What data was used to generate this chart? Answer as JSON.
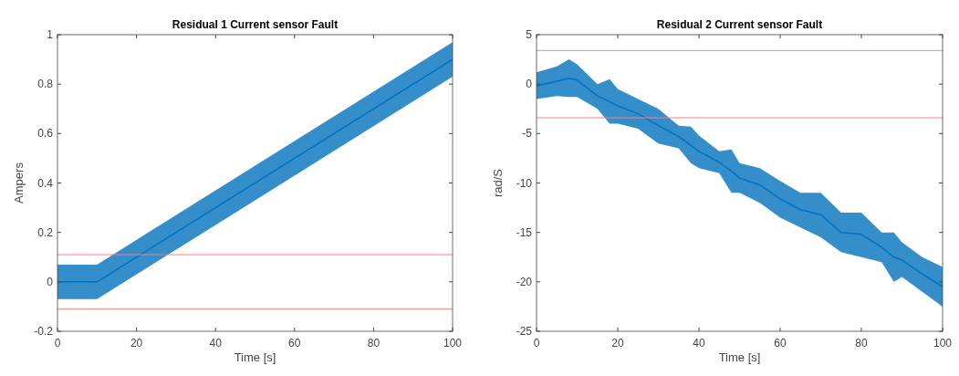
{
  "chart_data": [
    {
      "type": "line",
      "title": "Residual 1 Current sensor Fault",
      "xlabel": "Time [s]",
      "ylabel": "Ampers",
      "xlim": [
        0,
        100
      ],
      "xticks": [
        0,
        20,
        40,
        60,
        80,
        100
      ],
      "ylim": [
        -0.2,
        1
      ],
      "yticks": [
        -0.2,
        0,
        0.2,
        0.4,
        0.6,
        0.8,
        1
      ],
      "grid": false,
      "series": [
        {
          "color": "#0072bd",
          "x": [
            0,
            10,
            100
          ],
          "values": [
            0,
            0,
            0.9
          ],
          "lower": [
            -0.07,
            -0.07,
            0.83
          ],
          "upper": [
            0.07,
            0.07,
            0.97
          ]
        }
      ],
      "ref_lines": [
        {
          "axis": "y",
          "value": 0.11,
          "color": "#ff7f7f"
        },
        {
          "axis": "y",
          "value": -0.11,
          "color": "#ff7f7f"
        }
      ]
    },
    {
      "type": "line",
      "title": "Residual 2  Current sensor Fault",
      "xlabel": "Time [s]",
      "ylabel": "rad/S",
      "xlim": [
        0,
        100
      ],
      "xticks": [
        0,
        20,
        40,
        60,
        80,
        100
      ],
      "ylim": [
        -25,
        5
      ],
      "yticks": [
        -25,
        -20,
        -15,
        -10,
        -5,
        0,
        5
      ],
      "grid": false,
      "series": [
        {
          "color": "#0072bd",
          "x": [
            0,
            5,
            8,
            10,
            15,
            18,
            20,
            25,
            30,
            35,
            38,
            40,
            45,
            48,
            50,
            55,
            60,
            65,
            70,
            75,
            80,
            85,
            88,
            90,
            95,
            100
          ],
          "values": [
            -0.2,
            0.3,
            0.6,
            0.4,
            -1.2,
            -1.8,
            -2.2,
            -3,
            -4.2,
            -5.3,
            -6.2,
            -6.8,
            -7.9,
            -8.8,
            -9.5,
            -10.2,
            -11.6,
            -12.7,
            -13.2,
            -15,
            -15.2,
            -16.5,
            -17.5,
            -17.8,
            -19.2,
            -20.5
          ],
          "lower": [
            -1.5,
            -1.2,
            -1.3,
            -1.3,
            -2.5,
            -4,
            -4,
            -4.5,
            -6,
            -6.5,
            -8,
            -8.5,
            -9,
            -11,
            -11,
            -12,
            -13.5,
            -14.5,
            -15.5,
            -17,
            -17.5,
            -18,
            -20,
            -19.5,
            -21,
            -22.5
          ],
          "upper": [
            1.2,
            1.8,
            2.5,
            2,
            0,
            0.5,
            -0.5,
            -1.5,
            -2.5,
            -4.2,
            -4.3,
            -5.2,
            -6.8,
            -6.6,
            -8,
            -8.5,
            -9.8,
            -11,
            -11,
            -13,
            -13,
            -15,
            -15,
            -16,
            -17.5,
            -18.5
          ]
        }
      ],
      "ref_lines": [
        {
          "axis": "y",
          "value": 3.4,
          "color": "#ff7f7f"
        },
        {
          "axis": "y",
          "value": -3.4,
          "color": "#ff7f7f"
        }
      ]
    }
  ]
}
